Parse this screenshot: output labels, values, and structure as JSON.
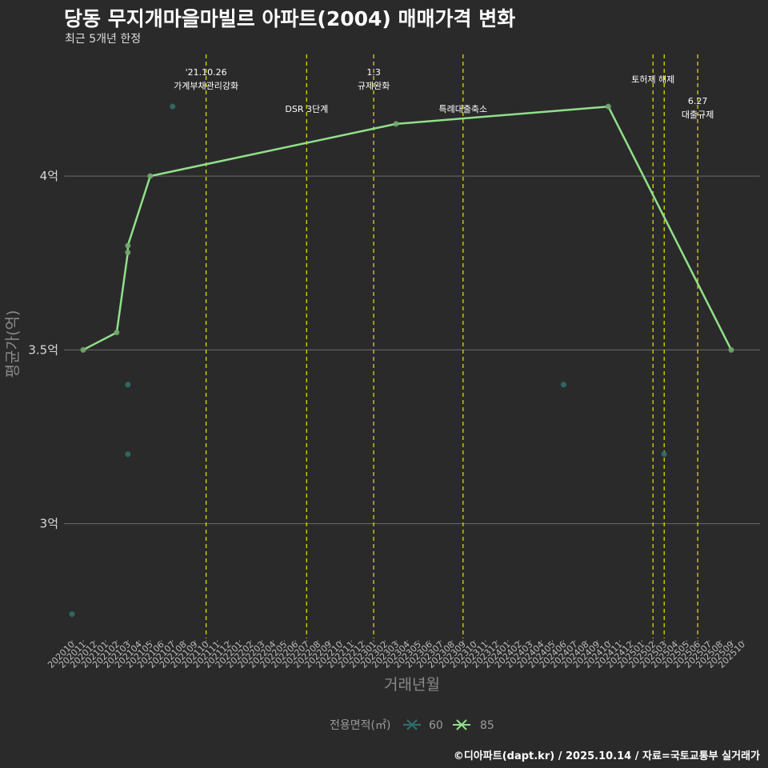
{
  "header": {
    "title": "당동 무지개마을마빌르 아파트(2004) 매매가격 변화",
    "subtitle": "최근 5개년 한정"
  },
  "footer": {
    "credit": "©디아파트(dapt.kr) / 2025.10.14 / 자료=국토교통부 실거래가"
  },
  "colors": {
    "bg": "#2b2a2b",
    "grid": "#6a6a6a",
    "vline": "#e8e800",
    "s60": "#2f6e6a",
    "s85": "#90e08a"
  },
  "chart_data": {
    "type": "line",
    "title": "당동 무지개마을마빌르 아파트(2004) 매매가격 변화",
    "xlabel": "거래년월",
    "ylabel": "평균가(억)",
    "ylim": [
      2.67,
      4.35
    ],
    "y_ticks": [
      {
        "value": 3.0,
        "label": "3억"
      },
      {
        "value": 3.5,
        "label": "3.5억"
      },
      {
        "value": 4.0,
        "label": "4억"
      }
    ],
    "categories": [
      "202010",
      "202011",
      "202012",
      "202101",
      "202102",
      "202103",
      "202104",
      "202105",
      "202106",
      "202107",
      "202108",
      "202109",
      "202110",
      "202111",
      "202112",
      "202201",
      "202202",
      "202203",
      "202204",
      "202205",
      "202206",
      "202207",
      "202208",
      "202209",
      "202210",
      "202211",
      "202212",
      "202301",
      "202302",
      "202303",
      "202304",
      "202305",
      "202306",
      "202307",
      "202308",
      "202309",
      "202310",
      "202311",
      "202312",
      "202401",
      "202402",
      "202403",
      "202404",
      "202405",
      "202406",
      "202407",
      "202408",
      "202409",
      "202410",
      "202411",
      "202412",
      "202501",
      "202502",
      "202503",
      "202504",
      "202505",
      "202506",
      "202507",
      "202508",
      "202509",
      "202510"
    ],
    "series": [
      {
        "name": "60",
        "line": false,
        "points": [
          {
            "x": "202010",
            "y": 2.74
          },
          {
            "x": "202103",
            "y": 3.4
          },
          {
            "x": "202103",
            "y": 3.2
          },
          {
            "x": "202107",
            "y": 4.2
          },
          {
            "x": "202406",
            "y": 3.4
          },
          {
            "x": "202503",
            "y": 3.2
          }
        ]
      },
      {
        "name": "85",
        "line": true,
        "points": [
          {
            "x": "202011",
            "y": 3.5
          },
          {
            "x": "202102",
            "y": 3.55
          },
          {
            "x": "202103",
            "y": 3.78
          },
          {
            "x": "202103",
            "y": 3.8
          },
          {
            "x": "202105",
            "y": 4.0
          },
          {
            "x": "202303",
            "y": 4.15
          },
          {
            "x": "202410",
            "y": 4.2
          },
          {
            "x": "202509",
            "y": 3.5
          }
        ]
      }
    ],
    "events": [
      {
        "x": "202110",
        "lines": [
          "'21.10.26",
          "가계부채관리강화"
        ],
        "level": 0
      },
      {
        "x": "202207",
        "lines": [
          "DSR 3단계"
        ],
        "level": 2
      },
      {
        "x": "202301",
        "lines": [
          "1.3",
          "규제완화"
        ],
        "level": 0
      },
      {
        "x": "202309",
        "lines": [
          "특례대출축소"
        ],
        "level": 2
      },
      {
        "x": "202502",
        "lines": [
          "토허제 해제"
        ],
        "level": 1
      },
      {
        "x": "202503",
        "lines": [],
        "level": 0
      },
      {
        "x": "202506",
        "lines": [
          "6.27",
          "대출규제"
        ],
        "level": 3
      }
    ],
    "legend": {
      "title": "전용면적(㎡)",
      "entries": [
        "60",
        "85"
      ],
      "position": "bottom"
    }
  }
}
